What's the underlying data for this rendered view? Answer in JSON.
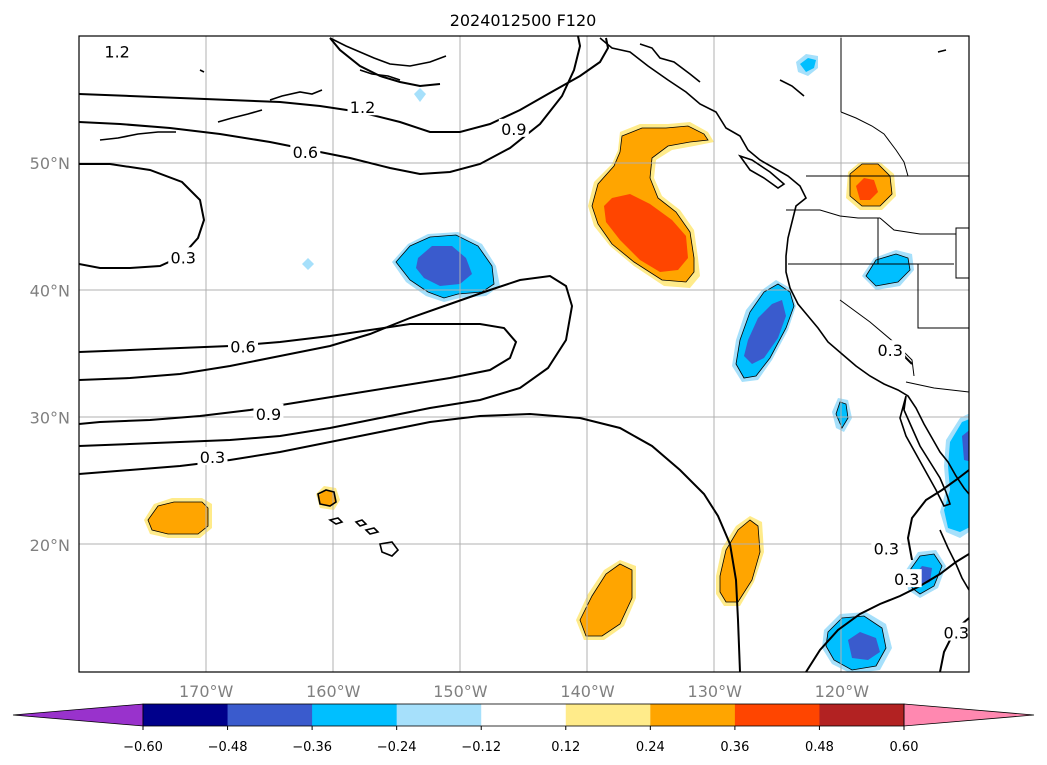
{
  "title": "2024012500 F120",
  "map": {
    "lon_range": [
      -180,
      -110
    ],
    "lat_range": [
      10,
      60
    ],
    "grid": true,
    "lon_ticks": [
      {
        "lon": -170,
        "label": "170°W"
      },
      {
        "lon": -160,
        "label": "160°W"
      },
      {
        "lon": -150,
        "label": "150°W"
      },
      {
        "lon": -140,
        "label": "140°W"
      },
      {
        "lon": -130,
        "label": "130°W"
      },
      {
        "lon": -120,
        "label": "120°W"
      }
    ],
    "lat_ticks": [
      {
        "lat": 50,
        "label": "50°N"
      },
      {
        "lat": 40,
        "label": "40°N"
      },
      {
        "lat": 30,
        "label": "30°N"
      },
      {
        "lat": 20,
        "label": "20°N"
      }
    ],
    "contour_labels": [
      {
        "text": "1.2",
        "lon": -177,
        "lat": 58.8
      },
      {
        "text": "1.2",
        "lon": -157.7,
        "lat": 54.4
      },
      {
        "text": "0.9",
        "lon": -145.8,
        "lat": 52.7
      },
      {
        "text": "0.6",
        "lon": -162.2,
        "lat": 50.9
      },
      {
        "text": "0.3",
        "lon": -171.8,
        "lat": 42.6
      },
      {
        "text": "0.6",
        "lon": -167.1,
        "lat": 35.6
      },
      {
        "text": "0.9",
        "lon": -165.1,
        "lat": 30.3
      },
      {
        "text": "0.3",
        "lon": -169.5,
        "lat": 26.9
      },
      {
        "text": "0.3",
        "lon": -116.2,
        "lat": 35.3
      },
      {
        "text": "0.3",
        "lon": -116.5,
        "lat": 19.7
      },
      {
        "text": "0.3",
        "lon": -114.9,
        "lat": 17.3
      },
      {
        "text": "0.3",
        "lon": -111.0,
        "lat": 13.1
      }
    ]
  },
  "colorbar": {
    "ticks": [
      "−0.60",
      "−0.48",
      "−0.36",
      "−0.24",
      "−0.12",
      "0.12",
      "0.24",
      "0.36",
      "0.48",
      "0.60"
    ],
    "colors": [
      "#9932cc",
      "#00008b",
      "#3a5bcd",
      "#00bfff",
      "#a6e0fb",
      "#ffffff",
      "#ffeb8a",
      "#ffa500",
      "#ff4500",
      "#b22222",
      "#ff88b0"
    ]
  }
}
